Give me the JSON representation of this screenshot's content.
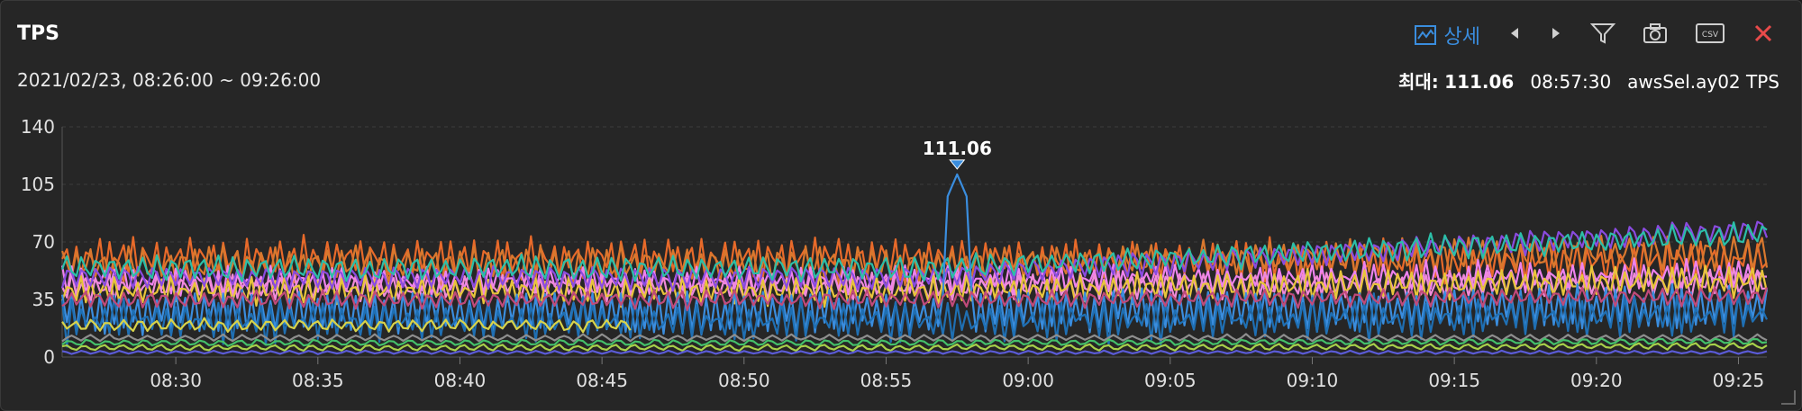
{
  "panel": {
    "title": "TPS",
    "time_range": "2021/02/23, 08:26:00 ~ 09:26:00",
    "toolbar": {
      "detail_label": "상세",
      "icons": [
        "chart-detail-icon",
        "prev-icon",
        "next-icon",
        "filter-icon",
        "camera-icon",
        "csv-icon",
        "close-icon"
      ],
      "close_color": "#e84a4a",
      "accent_color": "#3a8dde"
    },
    "max_info": {
      "label": "최대:",
      "value": "111.06",
      "time": "08:57:30",
      "series": "awsSel.ay02 TPS"
    }
  },
  "chart_data": {
    "type": "line",
    "title": "TPS",
    "xlabel": "",
    "ylabel": "",
    "ylim": [
      0,
      140
    ],
    "y_ticks": [
      0,
      35,
      70,
      105,
      140
    ],
    "x_start": "08:26",
    "x_end": "09:26",
    "x_ticks": [
      "08:30",
      "08:35",
      "08:40",
      "08:45",
      "08:50",
      "08:55",
      "09:00",
      "09:05",
      "09:10",
      "09:15",
      "09:20",
      "09:25"
    ],
    "grid": true,
    "peak": {
      "time": "08:57:30",
      "value": 111.06,
      "label": "111.06",
      "color": "#3a8dde"
    },
    "series": [
      {
        "color": "#e86a2a",
        "base": 62,
        "amp": 14,
        "period": 1.2,
        "late": 60
      },
      {
        "color": "#d9782e",
        "base": 58,
        "amp": 12,
        "period": 1.4,
        "late": 66
      },
      {
        "color": "#ee82ee",
        "base": 48,
        "amp": 10,
        "period": 1.1,
        "late": 52
      },
      {
        "color": "#f08bd8",
        "base": 44,
        "amp": 9,
        "period": 1.3,
        "late": 46
      },
      {
        "color": "#e8c53a",
        "base": 42,
        "amp": 10,
        "period": 1.2,
        "late": 48
      },
      {
        "color": "#8a4be0",
        "base": 50,
        "amp": 8,
        "period": 1.5,
        "late": 80
      },
      {
        "color": "#2bbfa8",
        "base": 55,
        "amp": 8,
        "period": 1.6,
        "late": 76
      },
      {
        "color": "#3a8dde",
        "base": 30,
        "amp": 18,
        "period": 1.0,
        "late": 34
      },
      {
        "color": "#1f6fb3",
        "base": 24,
        "amp": 14,
        "period": 1.1,
        "late": 28
      },
      {
        "color": "#d8d34a",
        "base": 20,
        "amp": 4,
        "period": 1.7,
        "late": 0
      },
      {
        "color": "#c04a7a",
        "base": 36,
        "amp": 6,
        "period": 1.4,
        "late": 38
      },
      {
        "color": "#8e8e8e",
        "base": 12,
        "amp": 2,
        "period": 2.0,
        "late": 12
      },
      {
        "color": "#44c06a",
        "base": 9,
        "amp": 2,
        "period": 2.0,
        "late": 10
      },
      {
        "color": "#a8d04a",
        "base": 6,
        "amp": 2,
        "period": 2.0,
        "late": 7
      },
      {
        "color": "#5b5bd6",
        "base": 3,
        "amp": 1,
        "period": 2.0,
        "late": 3
      }
    ]
  }
}
